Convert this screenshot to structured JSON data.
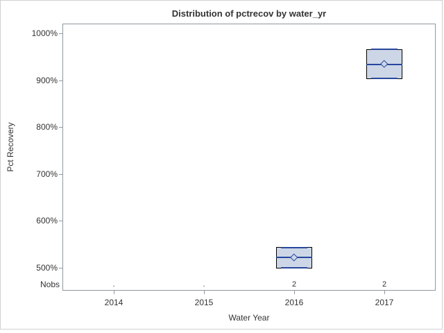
{
  "colors": {
    "background": "#ffffff",
    "outer_border": "#d0d0d0",
    "frame": "#8f979d",
    "text": "#333333",
    "box_fill": "#ccd6e6",
    "box_border": "#000000",
    "box_line_blue": "#27479e"
  },
  "chart_data": {
    "type": "boxplot",
    "title": "Distribution of pctrecov by water_yr",
    "xlabel": "Water Year",
    "ylabel": "Pct Recovery",
    "nobs_label": "Nobs",
    "categories": [
      "2014",
      "2015",
      "2016",
      "2017"
    ],
    "y_tick_labels": [
      "1000%",
      "900%",
      "800%",
      "700%",
      "600%",
      "500%"
    ],
    "y_tick_values": [
      1000,
      900,
      800,
      700,
      600,
      500
    ],
    "ylim": [
      451,
      1021
    ],
    "grid": false,
    "legend": "none",
    "series": [
      {
        "category": "2014",
        "nobs": ".",
        "stats": null
      },
      {
        "category": "2015",
        "nobs": ".",
        "stats": null
      },
      {
        "category": "2016",
        "nobs": "2",
        "stats": {
          "min": 499,
          "q1": 499,
          "median": 522,
          "mean": 522,
          "q3": 544,
          "max": 544
        }
      },
      {
        "category": "2017",
        "nobs": "2",
        "stats": {
          "min": 903,
          "q1": 903,
          "median": 934,
          "mean": 934,
          "q3": 966,
          "max": 966
        }
      }
    ]
  }
}
